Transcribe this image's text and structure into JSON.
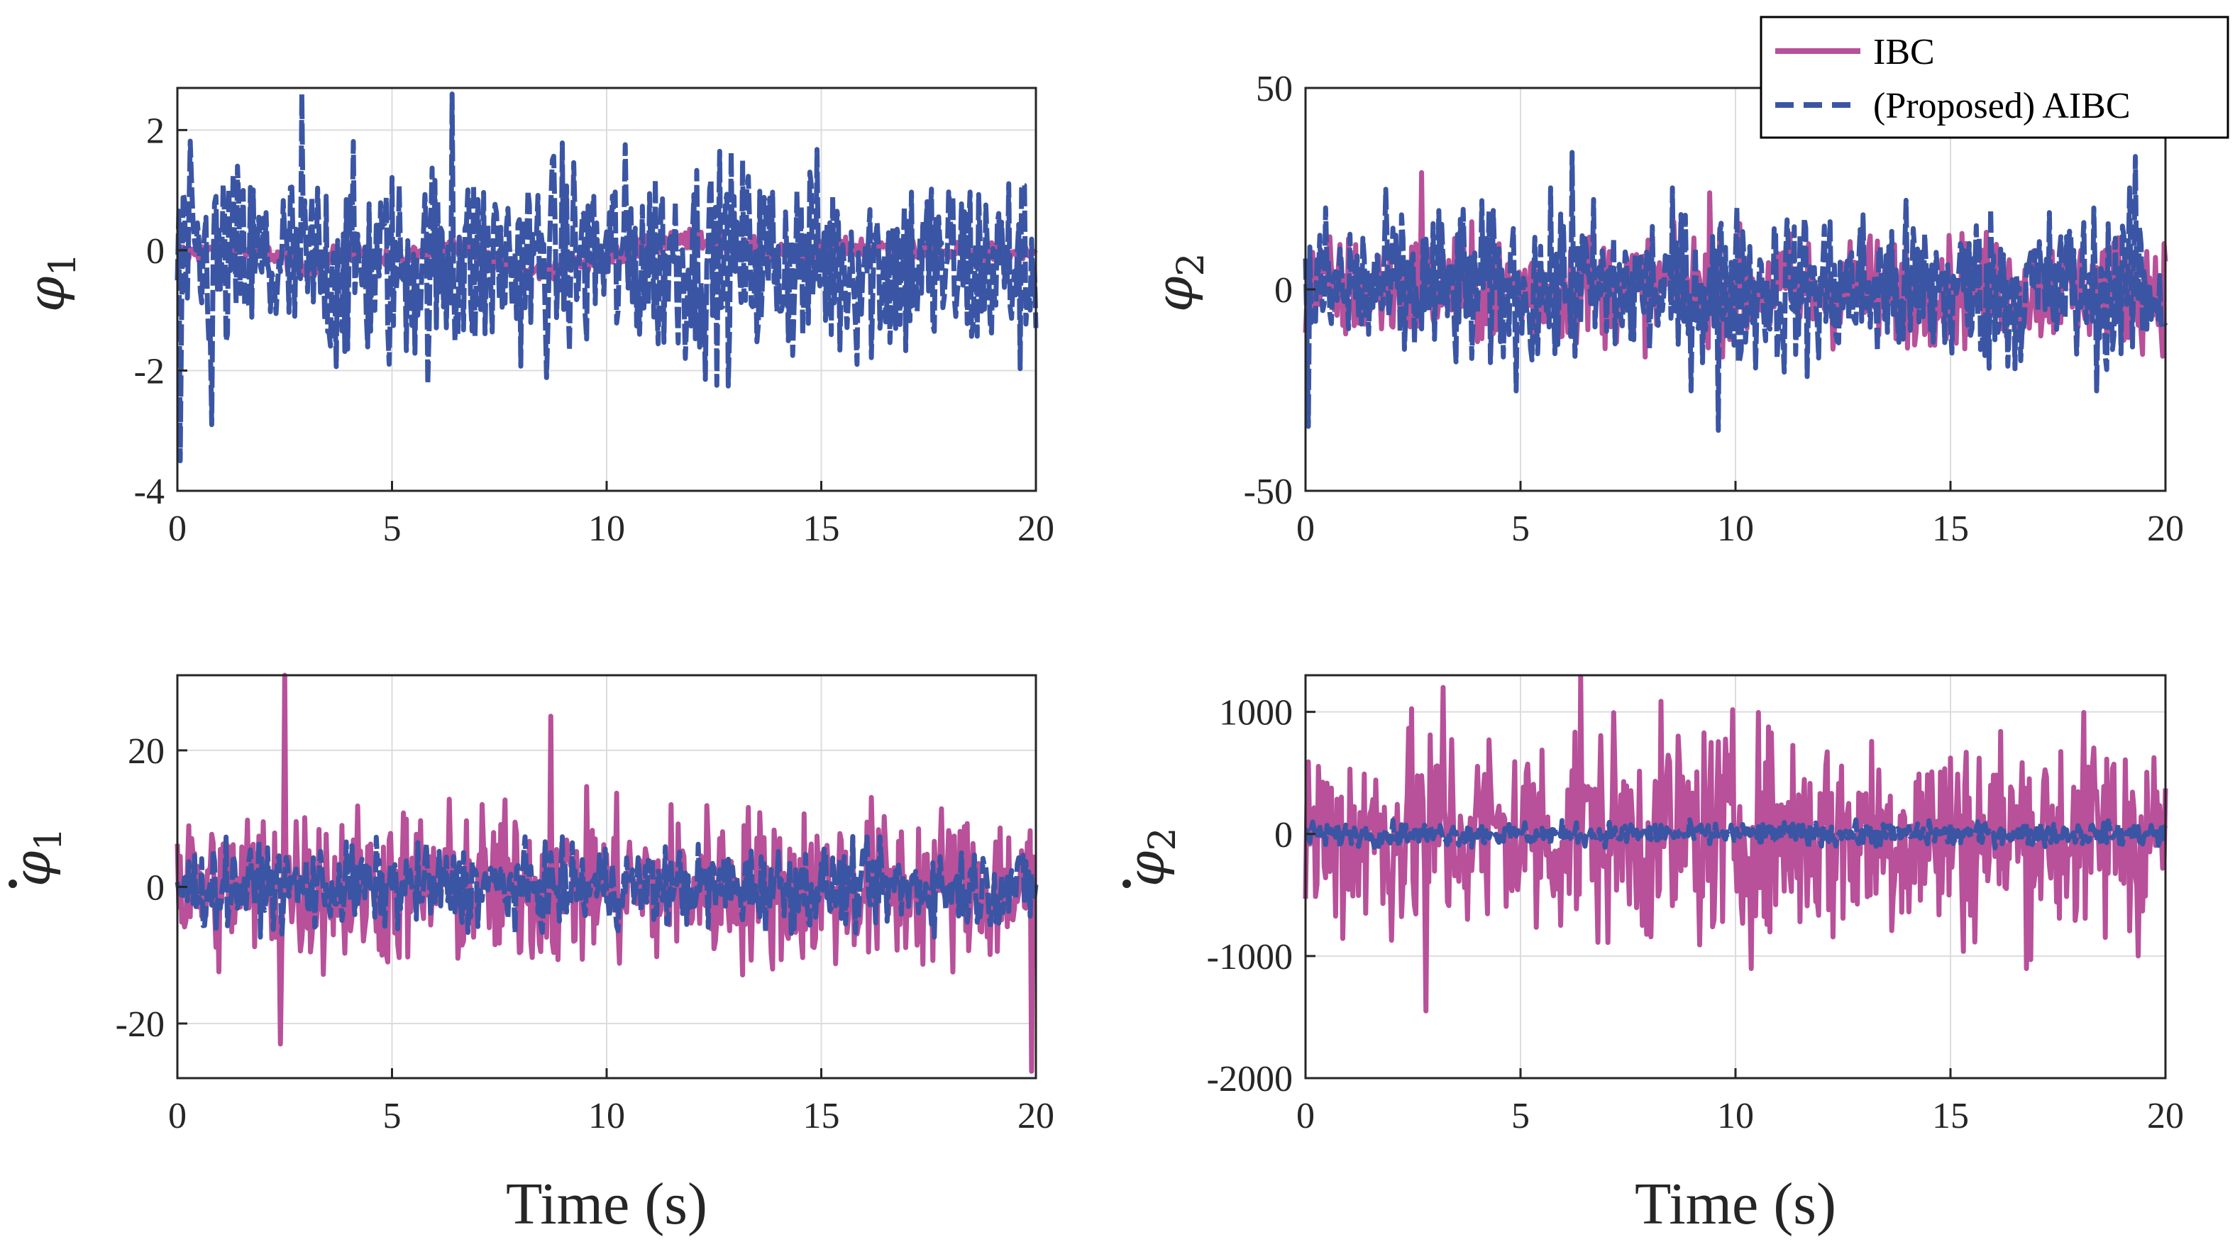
{
  "legend": {
    "entries": [
      {
        "label": "IBC",
        "style": "solid",
        "color": "#B8509A"
      },
      {
        "label": "(Proposed) AIBC",
        "style": "dashed",
        "color": "#3A55A4"
      }
    ]
  },
  "chart_data": [
    {
      "type": "line",
      "ylabel_symbol": "φ",
      "ylabel_subscript": "1",
      "ylabel_dot": false,
      "xlabel": "",
      "xlim": [
        0,
        20
      ],
      "ylim": [
        -4,
        2.7
      ],
      "xticks": [
        0,
        5,
        10,
        15,
        20
      ],
      "xtick_labels": [
        "0",
        "5",
        "10",
        "15",
        "20"
      ],
      "yticks": [
        -4,
        -2,
        0,
        2
      ],
      "ytick_labels": [
        "-4",
        "-2",
        "0",
        "2"
      ],
      "grid": true,
      "series": [
        {
          "name": "IBC",
          "color": "#B8509A",
          "style": "solid",
          "center": [
            [
              0,
              -0.05
            ],
            [
              2,
              0.0
            ],
            [
              3,
              -0.3
            ],
            [
              4,
              0.0
            ],
            [
              5,
              -0.2
            ],
            [
              6.5,
              0.15
            ],
            [
              8,
              -0.4
            ],
            [
              10,
              -0.1
            ],
            [
              12,
              0.2
            ],
            [
              14,
              -0.05
            ],
            [
              16,
              0.05
            ],
            [
              18,
              -0.05
            ],
            [
              20,
              -0.05
            ]
          ],
          "half_amplitude": 0.2,
          "spikes": []
        },
        {
          "name": "(Proposed) AIBC",
          "color": "#3A55A4",
          "style": "dashed",
          "center": [
            [
              0,
              -0.25
            ],
            [
              5,
              -0.3
            ],
            [
              10,
              -0.1
            ],
            [
              15,
              -0.2
            ],
            [
              20,
              -0.3
            ]
          ],
          "half_amplitude": 2.0,
          "spikes": [
            [
              0.05,
              -3.5
            ],
            [
              2.9,
              2.6
            ],
            [
              6.4,
              2.6
            ],
            [
              0.8,
              -2.9
            ]
          ]
        }
      ]
    },
    {
      "type": "line",
      "ylabel_symbol": "φ",
      "ylabel_subscript": "2",
      "ylabel_dot": false,
      "xlabel": "",
      "xlim": [
        0,
        20
      ],
      "ylim": [
        -50,
        50
      ],
      "xticks": [
        0,
        5,
        10,
        15,
        20
      ],
      "xtick_labels": [
        "0",
        "5",
        "10",
        "15",
        "20"
      ],
      "yticks": [
        -50,
        0,
        50
      ],
      "ytick_labels": [
        "-50",
        "0",
        "50"
      ],
      "grid": true,
      "series": [
        {
          "name": "IBC",
          "color": "#B8509A",
          "style": "solid",
          "center": [
            [
              0,
              0
            ],
            [
              20,
              0
            ]
          ],
          "half_amplitude": 16,
          "spikes": [
            [
              2.7,
              29
            ],
            [
              9.4,
              24
            ]
          ]
        },
        {
          "name": "(Proposed) AIBC",
          "color": "#3A55A4",
          "style": "dashed",
          "center": [
            [
              0,
              0
            ],
            [
              20,
              0
            ]
          ],
          "half_amplitude": 24,
          "spikes": [
            [
              6.2,
              34
            ],
            [
              0.05,
              -34
            ],
            [
              9.6,
              -35
            ],
            [
              19.3,
              33
            ]
          ]
        }
      ]
    },
    {
      "type": "line",
      "ylabel_symbol": "φ",
      "ylabel_subscript": "1",
      "ylabel_dot": true,
      "xlabel": "Time (s)",
      "xlim": [
        0,
        20
      ],
      "ylim": [
        -28,
        31
      ],
      "xticks": [
        0,
        5,
        10,
        15,
        20
      ],
      "xtick_labels": [
        "0",
        "5",
        "10",
        "15",
        "20"
      ],
      "yticks": [
        -20,
        0,
        20
      ],
      "ytick_labels": [
        "-20",
        "0",
        "20"
      ],
      "grid": true,
      "series": [
        {
          "name": "IBC",
          "color": "#B8509A",
          "style": "solid",
          "center": [
            [
              0,
              0
            ],
            [
              20,
              0
            ]
          ],
          "half_amplitude": 14,
          "spikes": [
            [
              2.5,
              31
            ],
            [
              8.7,
              25
            ],
            [
              19.9,
              -27
            ],
            [
              2.4,
              -23
            ]
          ]
        },
        {
          "name": "(Proposed) AIBC",
          "color": "#3A55A4",
          "style": "dashed",
          "center": [
            [
              0,
              0
            ],
            [
              20,
              0
            ]
          ],
          "half_amplitude": 7,
          "spikes": []
        }
      ]
    },
    {
      "type": "line",
      "ylabel_symbol": "φ",
      "ylabel_subscript": "2",
      "ylabel_dot": true,
      "xlabel": "Time (s)",
      "xlim": [
        0,
        20
      ],
      "ylim": [
        -2000,
        1300
      ],
      "xticks": [
        0,
        5,
        10,
        15,
        20
      ],
      "xtick_labels": [
        "0",
        "5",
        "10",
        "15",
        "20"
      ],
      "yticks": [
        -2000,
        -1000,
        0,
        1000
      ],
      "ytick_labels": [
        "-2000",
        "-1000",
        "0",
        "1000"
      ],
      "grid": true,
      "series": [
        {
          "name": "IBC",
          "color": "#B8509A",
          "style": "solid",
          "center": [
            [
              0,
              0
            ],
            [
              20,
              0
            ]
          ],
          "half_amplitude": 1050,
          "spikes": [
            [
              6.4,
              1290
            ],
            [
              2.8,
              -1450
            ],
            [
              3.2,
              1200
            ]
          ]
        },
        {
          "name": "(Proposed) AIBC",
          "color": "#3A55A4",
          "style": "dashed",
          "center": [
            [
              0,
              0
            ],
            [
              20,
              0
            ]
          ],
          "half_amplitude": 110,
          "spikes": []
        }
      ]
    }
  ]
}
